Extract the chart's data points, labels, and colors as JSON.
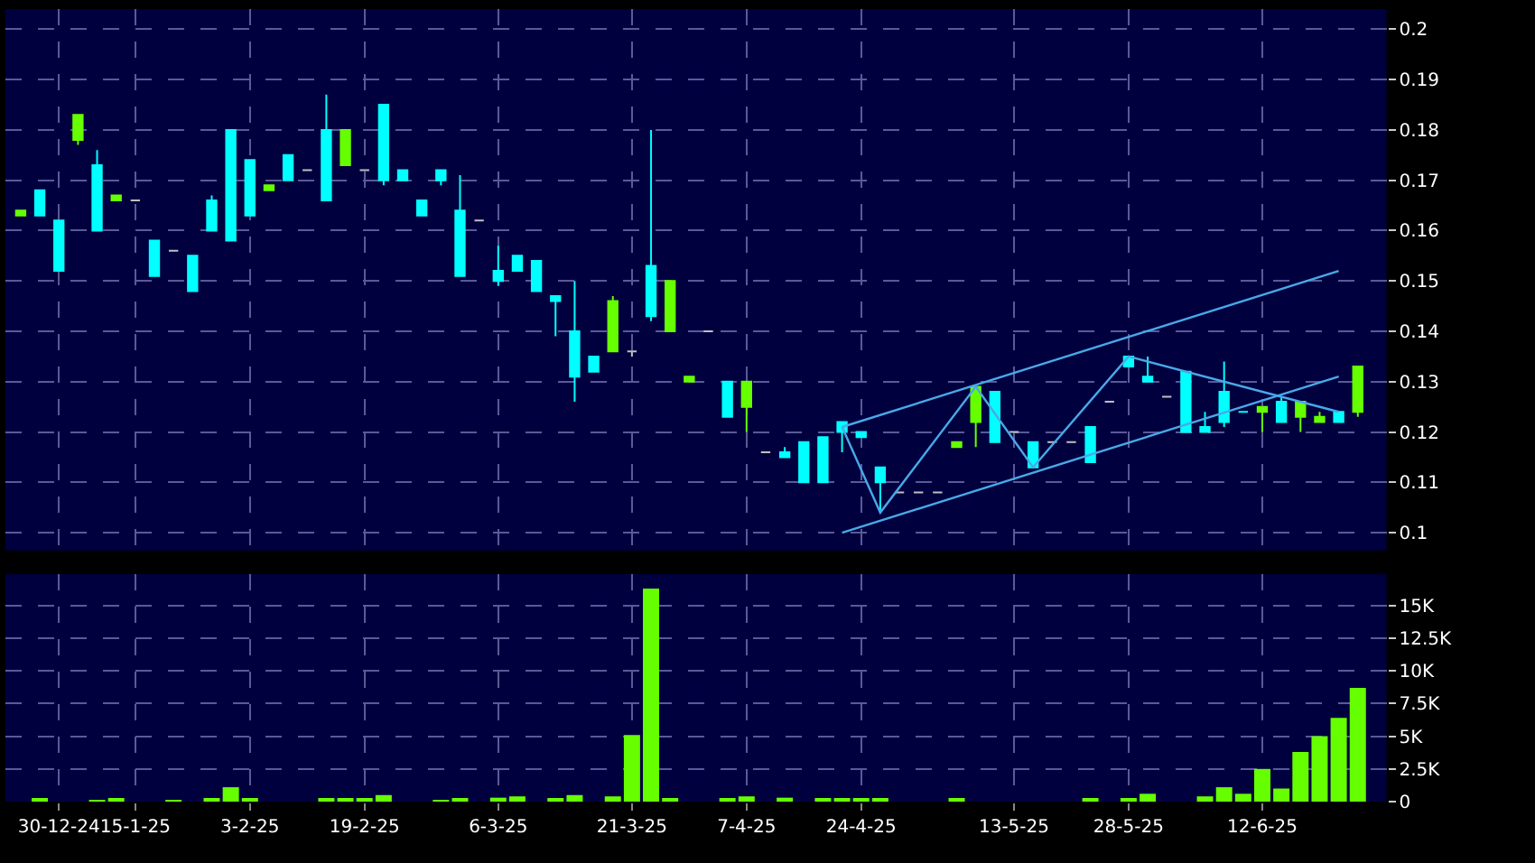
{
  "chart_data": [
    {
      "type": "candlestick",
      "categories": [
        null,
        null,
        null,
        null,
        null,
        null,
        null,
        null,
        null,
        null,
        null,
        null,
        null,
        null,
        null,
        null,
        null,
        null,
        null,
        null,
        null,
        null,
        null,
        null,
        null,
        null,
        null,
        null,
        null,
        null,
        null,
        null,
        null,
        null,
        null,
        null,
        null,
        null,
        null,
        null,
        null,
        null,
        null,
        null,
        null,
        null,
        null,
        null,
        null,
        null,
        null,
        null,
        null,
        null,
        null,
        null,
        null,
        null,
        null,
        null,
        null,
        null,
        null,
        null,
        null,
        null,
        null,
        null,
        null,
        null,
        null
      ],
      "ohlc": [
        [
          0.164,
          0.164,
          0.163,
          0.163
        ],
        [
          0.163,
          0.168,
          0.163,
          0.168
        ],
        [
          0.152,
          0.162,
          0.152,
          0.162
        ],
        [
          0.183,
          0.183,
          0.177,
          0.178
        ],
        [
          0.16,
          0.176,
          0.16,
          0.173
        ],
        [
          0.167,
          0.167,
          0.166,
          0.166
        ],
        [
          0.166,
          0.166,
          0.166,
          0.166
        ],
        [
          0.151,
          0.158,
          0.151,
          0.158
        ],
        [
          0.156,
          0.156,
          0.156,
          0.156
        ],
        [
          0.148,
          0.155,
          0.148,
          0.155
        ],
        [
          0.16,
          0.167,
          0.16,
          0.166
        ],
        [
          0.158,
          0.18,
          0.158,
          0.18
        ],
        [
          0.163,
          0.174,
          0.163,
          0.174
        ],
        [
          0.169,
          0.169,
          0.168,
          0.168
        ],
        [
          0.17,
          0.175,
          0.17,
          0.175
        ],
        [
          0.172,
          0.172,
          0.172,
          0.172
        ],
        [
          0.166,
          0.187,
          0.166,
          0.18
        ],
        [
          0.18,
          0.18,
          0.173,
          0.173
        ],
        [
          0.172,
          0.172,
          0.172,
          0.172
        ],
        [
          0.17,
          0.185,
          0.169,
          0.185
        ],
        [
          0.17,
          0.172,
          0.17,
          0.172
        ],
        [
          0.163,
          0.166,
          0.163,
          0.166
        ],
        [
          0.17,
          0.172,
          0.169,
          0.172
        ],
        [
          0.151,
          0.171,
          0.151,
          0.164
        ],
        [
          0.162,
          0.162,
          0.162,
          0.162
        ],
        [
          0.15,
          0.157,
          0.149,
          0.152
        ],
        [
          0.152,
          0.155,
          0.152,
          0.155
        ],
        [
          0.148,
          0.154,
          0.148,
          0.154
        ],
        [
          0.146,
          0.147,
          0.139,
          0.147
        ],
        [
          0.131,
          0.15,
          0.126,
          0.14
        ],
        [
          0.132,
          0.135,
          0.132,
          0.135
        ],
        [
          0.146,
          0.147,
          0.136,
          0.136
        ],
        [
          0.136,
          0.136,
          0.135,
          0.136
        ],
        [
          0.143,
          0.18,
          0.142,
          0.153
        ],
        [
          0.15,
          0.15,
          0.14,
          0.14
        ],
        [
          0.131,
          0.131,
          0.13,
          0.13
        ],
        [
          0.14,
          0.14,
          0.14,
          0.14
        ],
        [
          0.123,
          0.13,
          0.123,
          0.13
        ],
        [
          0.13,
          0.13,
          0.12,
          0.125
        ],
        [
          0.116,
          0.116,
          0.116,
          0.116
        ],
        [
          0.115,
          0.117,
          0.115,
          0.116
        ],
        [
          0.11,
          0.118,
          0.11,
          0.118
        ],
        [
          0.11,
          0.119,
          0.11,
          0.119
        ],
        [
          0.12,
          0.122,
          0.116,
          0.122
        ],
        [
          0.119,
          0.12,
          0.119,
          0.12
        ],
        [
          0.11,
          0.113,
          0.104,
          0.113
        ],
        [
          0.108,
          0.108,
          0.108,
          0.108
        ],
        [
          0.108,
          0.108,
          0.108,
          0.108
        ],
        [
          0.108,
          0.108,
          0.108,
          0.108
        ],
        [
          0.118,
          0.118,
          0.117,
          0.117
        ],
        [
          0.129,
          0.129,
          0.117,
          0.122
        ],
        [
          0.118,
          0.128,
          0.118,
          0.128
        ],
        [
          0.12,
          0.12,
          0.12,
          0.12
        ],
        [
          0.113,
          0.118,
          0.113,
          0.118
        ],
        [
          0.118,
          0.118,
          0.118,
          0.118
        ],
        [
          0.118,
          0.118,
          0.118,
          0.118
        ],
        [
          0.114,
          0.121,
          0.114,
          0.121
        ],
        [
          0.126,
          0.126,
          0.126,
          0.126
        ],
        [
          0.133,
          0.135,
          0.133,
          0.135
        ],
        [
          0.13,
          0.135,
          0.13,
          0.131
        ],
        [
          0.127,
          0.127,
          0.127,
          0.127
        ],
        [
          0.12,
          0.132,
          0.12,
          0.132
        ],
        [
          0.12,
          0.124,
          0.12,
          0.121
        ],
        [
          0.122,
          0.134,
          0.121,
          0.128
        ],
        [
          0.124,
          0.124,
          0.124,
          0.124
        ],
        [
          0.125,
          0.125,
          0.12,
          0.124
        ],
        [
          0.122,
          0.127,
          0.122,
          0.126
        ],
        [
          0.126,
          0.126,
          0.12,
          0.123
        ],
        [
          0.123,
          0.124,
          0.122,
          0.122
        ],
        [
          0.122,
          0.124,
          0.122,
          0.124
        ],
        [
          0.133,
          0.133,
          0.123,
          0.124
        ]
      ],
      "colors": [
        "#66ff00",
        "#00ffff",
        "#00ffff",
        "#66ff00",
        "#00ffff",
        "#66ff00",
        "#c0c0c0",
        "#00ffff",
        "#c0c0c0",
        "#00ffff",
        "#00ffff",
        "#00ffff",
        "#00ffff",
        "#66ff00",
        "#00ffff",
        "#c0c0c0",
        "#00ffff",
        "#66ff00",
        "#c0c0c0",
        "#00ffff",
        "#00ffff",
        "#00ffff",
        "#00ffff",
        "#00ffff",
        "#c0c0c0",
        "#00ffff",
        "#00ffff",
        "#00ffff",
        "#00ffff",
        "#00ffff",
        "#00ffff",
        "#66ff00",
        "#c0c0c0",
        "#00ffff",
        "#66ff00",
        "#66ff00",
        "#c0c0c0",
        "#00ffff",
        "#66ff00",
        "#c0c0c0",
        "#00ffff",
        "#00ffff",
        "#00ffff",
        "#00ffff",
        "#00ffff",
        "#00ffff",
        "#c0c0c0",
        "#c0c0c0",
        "#c0c0c0",
        "#66ff00",
        "#66ff00",
        "#00ffff",
        "#c0c0c0",
        "#00ffff",
        "#c0c0c0",
        "#c0c0c0",
        "#00ffff",
        "#c0c0c0",
        "#00ffff",
        "#00ffff",
        "#c0c0c0",
        "#00ffff",
        "#00ffff",
        "#00ffff",
        "#00ffff",
        "#66ff00",
        "#00ffff",
        "#66ff00",
        "#66ff00",
        "#00ffff",
        "#66ff00"
      ],
      "series": [
        {
          "type": "line",
          "color": "#4aa8e8",
          "values": [
            null,
            null,
            null,
            null,
            null,
            null,
            null,
            null,
            null,
            null,
            null,
            null,
            null,
            null,
            null,
            null,
            null,
            null,
            null,
            null,
            null,
            null,
            null,
            null,
            null,
            null,
            null,
            null,
            null,
            null,
            null,
            null,
            null,
            null,
            null,
            null,
            null,
            null,
            null,
            null,
            null,
            null,
            null,
            0.121,
            null,
            null,
            null,
            null,
            null,
            null,
            null,
            null,
            null,
            null,
            null,
            null,
            null,
            null,
            null,
            null,
            null,
            null,
            null,
            null,
            null,
            null,
            null,
            null,
            null,
            0.152,
            null
          ]
        },
        {
          "type": "line",
          "color": "#4aa8e8",
          "values": [
            null,
            null,
            null,
            null,
            null,
            null,
            null,
            null,
            null,
            null,
            null,
            null,
            null,
            null,
            null,
            null,
            null,
            null,
            null,
            null,
            null,
            null,
            null,
            null,
            null,
            null,
            null,
            null,
            null,
            null,
            null,
            null,
            null,
            null,
            null,
            null,
            null,
            null,
            null,
            null,
            null,
            null,
            null,
            0.1,
            null,
            null,
            null,
            null,
            null,
            null,
            null,
            null,
            null,
            null,
            null,
            null,
            null,
            null,
            null,
            null,
            null,
            null,
            null,
            null,
            null,
            null,
            null,
            null,
            null,
            0.131,
            null
          ]
        },
        {
          "type": "line",
          "color": "#4aa8e8",
          "values": [
            null,
            null,
            null,
            null,
            null,
            null,
            null,
            null,
            null,
            null,
            null,
            null,
            null,
            null,
            null,
            null,
            null,
            null,
            null,
            null,
            null,
            null,
            null,
            null,
            null,
            null,
            null,
            null,
            null,
            null,
            null,
            null,
            null,
            null,
            null,
            null,
            null,
            null,
            null,
            null,
            null,
            null,
            null,
            0.121,
            null,
            0.104,
            null,
            null,
            null,
            null,
            0.129,
            null,
            null,
            0.113,
            null,
            null,
            null,
            null,
            0.135,
            null,
            null,
            null,
            null,
            null,
            null,
            null,
            null,
            null,
            null,
            0.124,
            null
          ]
        }
      ],
      "ylim": [
        0.0965,
        0.204
      ],
      "yticks": [
        0.1,
        0.11,
        0.12,
        0.13,
        0.14,
        0.15,
        0.16,
        0.17,
        0.18,
        0.19,
        0.2
      ],
      "tick_labels": "y",
      "grid": true
    },
    {
      "type": "bar",
      "categories": [
        null,
        null,
        "30-12-24",
        null,
        null,
        null,
        "15-1-25",
        null,
        null,
        null,
        null,
        null,
        "3-2-25",
        null,
        null,
        null,
        null,
        null,
        "19-2-25",
        null,
        null,
        null,
        null,
        null,
        null,
        "6-3-25",
        null,
        null,
        null,
        null,
        null,
        null,
        "21-3-25",
        null,
        null,
        null,
        null,
        null,
        "7-4-25",
        null,
        null,
        null,
        null,
        null,
        "24-4-25",
        null,
        null,
        null,
        null,
        null,
        null,
        null,
        "13-5-25",
        null,
        null,
        null,
        null,
        null,
        "28-5-25",
        null,
        null,
        null,
        null,
        null,
        null,
        "12-6-25",
        null,
        null,
        null,
        null,
        null
      ],
      "values": [
        0,
        200,
        0,
        0,
        100,
        200,
        0,
        0,
        100,
        0,
        200,
        1100,
        200,
        0,
        0,
        0,
        200,
        200,
        200,
        500,
        0,
        0,
        100,
        200,
        0,
        300,
        400,
        0,
        200,
        500,
        0,
        400,
        5100,
        16300,
        200,
        0,
        0,
        200,
        400,
        0,
        300,
        0,
        200,
        200,
        200,
        200,
        0,
        0,
        0,
        200,
        0,
        0,
        0,
        0,
        0,
        0,
        200,
        0,
        200,
        600,
        0,
        0,
        400,
        1100,
        600,
        2500,
        1000,
        3800,
        5000,
        6400,
        8700
      ],
      "color": "#66ff00",
      "ylim": [
        0,
        17400
      ],
      "yticks": [
        {
          "value": 0,
          "label": "0"
        },
        {
          "value": 2500,
          "label": "2.5K"
        },
        {
          "value": 5000,
          "label": "5K"
        },
        {
          "value": 7500,
          "label": "7.5K"
        },
        {
          "value": 10000,
          "label": "10K"
        },
        {
          "value": 12500,
          "label": "12.5K"
        },
        {
          "value": 15000,
          "label": "15K"
        }
      ],
      "grid": true
    }
  ]
}
